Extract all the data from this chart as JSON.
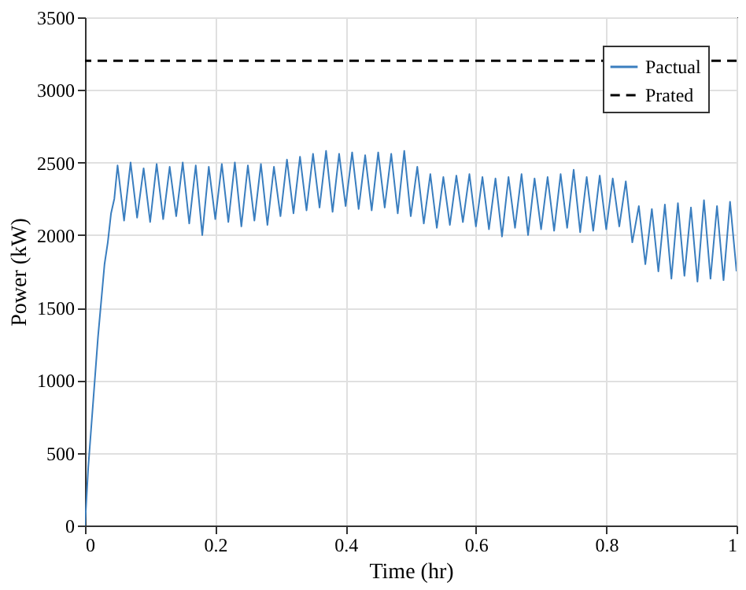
{
  "chart_data": {
    "type": "line",
    "xlabel": "Time (hr)",
    "ylabel": "Power (kW)",
    "xlim": [
      0,
      1
    ],
    "xticks": [
      0,
      0.2,
      0.4,
      0.6,
      0.8,
      1
    ],
    "ylim": [
      0,
      3500
    ],
    "yticks": [
      0,
      500,
      1000,
      1500,
      2000,
      2500,
      3000,
      3500
    ],
    "grid": true,
    "legend": "top right",
    "line_style": "solid",
    "x": [
      0,
      0.005,
      0.01,
      0.015,
      0.02,
      0.025,
      0.03,
      0.035,
      0.04,
      0.045,
      0.05,
      0.06,
      0.07,
      0.08,
      0.09,
      0.1,
      0.11,
      0.12,
      0.13,
      0.14,
      0.15,
      0.16,
      0.17,
      0.18,
      0.19,
      0.2,
      0.21,
      0.22,
      0.23,
      0.24,
      0.25,
      0.26,
      0.27,
      0.28,
      0.29,
      0.3,
      0.31,
      0.32,
      0.33,
      0.34,
      0.35,
      0.36,
      0.37,
      0.38,
      0.39,
      0.4,
      0.41,
      0.42,
      0.43,
      0.44,
      0.45,
      0.46,
      0.47,
      0.48,
      0.49,
      0.5,
      0.51,
      0.52,
      0.53,
      0.54,
      0.55,
      0.56,
      0.57,
      0.58,
      0.59,
      0.6,
      0.61,
      0.62,
      0.63,
      0.64,
      0.65,
      0.66,
      0.67,
      0.68,
      0.69,
      0.7,
      0.71,
      0.72,
      0.73,
      0.74,
      0.75,
      0.76,
      0.77,
      0.78,
      0.79,
      0.8,
      0.81,
      0.82,
      0.83,
      0.84,
      0.85,
      0.86,
      0.87,
      0.88,
      0.89,
      0.9,
      0.91,
      0.92,
      0.93,
      0.94,
      0.95,
      0.96,
      0.97,
      0.98,
      0.99,
      1.0
    ],
    "series": [
      {
        "name": "Pactual",
        "color": "#3a7ebf",
        "values": [
          0,
          400,
          700,
          1000,
          1300,
          1550,
          1800,
          1950,
          2150,
          2250,
          2480,
          2100,
          2500,
          2120,
          2460,
          2090,
          2490,
          2110,
          2470,
          2130,
          2500,
          2080,
          2480,
          2000,
          2470,
          2110,
          2490,
          2090,
          2500,
          2060,
          2480,
          2100,
          2490,
          2070,
          2470,
          2130,
          2520,
          2150,
          2540,
          2170,
          2560,
          2190,
          2580,
          2160,
          2560,
          2200,
          2570,
          2180,
          2550,
          2170,
          2570,
          2190,
          2560,
          2150,
          2580,
          2130,
          2470,
          2080,
          2420,
          2050,
          2400,
          2070,
          2410,
          2090,
          2420,
          2060,
          2400,
          2040,
          2390,
          1990,
          2400,
          2050,
          2420,
          2000,
          2390,
          2040,
          2400,
          2030,
          2420,
          2050,
          2450,
          2020,
          2400,
          2030,
          2410,
          2040,
          2390,
          2060,
          2370,
          1950,
          2200,
          1800,
          2180,
          1750,
          2210,
          1700,
          2220,
          1720,
          2190,
          1680,
          2240,
          1700,
          2200,
          1690,
          2230,
          1750
        ]
      }
    ],
    "ref_lines": [
      {
        "axis": "y",
        "value": 3200,
        "label": "Prated",
        "color": "#000000",
        "line_style": "dashed"
      }
    ]
  }
}
